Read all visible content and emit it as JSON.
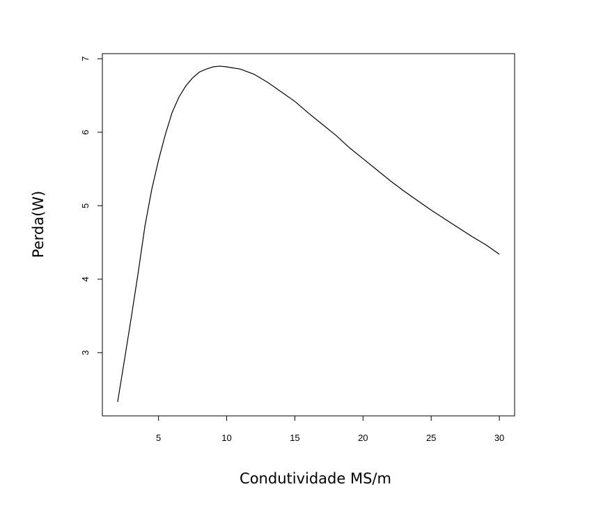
{
  "chart_data": {
    "type": "line",
    "title": "",
    "xlabel": "Condutividade MS/m",
    "ylabel": "Perda(W)",
    "xlim": [
      0.88,
      31.12
    ],
    "ylim": [
      2.14,
      7.07
    ],
    "xticks": [
      5,
      10,
      15,
      20,
      25,
      30
    ],
    "yticks": [
      3,
      4,
      5,
      6,
      7
    ],
    "grid": false,
    "legend": "none",
    "line_color": "#000000",
    "series": [
      {
        "x": [
          2,
          2.5,
          3,
          3.5,
          4,
          4.5,
          5,
          5.5,
          6,
          6.5,
          7,
          7.5,
          8,
          8.5,
          9,
          9.5,
          10,
          11,
          12,
          13,
          14,
          15,
          16,
          17,
          18,
          19,
          20,
          21,
          22,
          23,
          24,
          25,
          26,
          27,
          28,
          29,
          30
        ],
        "y": [
          2.33,
          2.9,
          3.48,
          4.08,
          4.72,
          5.22,
          5.62,
          5.97,
          6.27,
          6.48,
          6.63,
          6.74,
          6.82,
          6.86,
          6.89,
          6.9,
          6.89,
          6.86,
          6.79,
          6.68,
          6.55,
          6.42,
          6.26,
          6.11,
          5.96,
          5.79,
          5.64,
          5.49,
          5.34,
          5.2,
          5.07,
          4.94,
          4.82,
          4.7,
          4.58,
          4.47,
          4.34
        ]
      }
    ]
  }
}
